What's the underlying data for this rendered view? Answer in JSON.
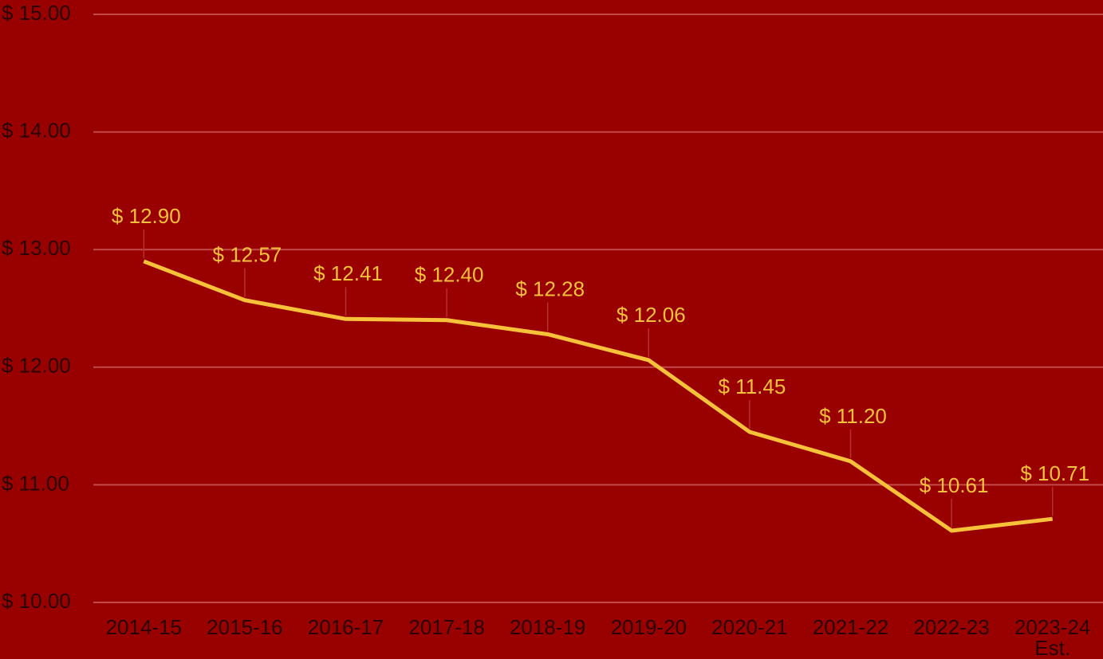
{
  "chart_data": {
    "type": "line",
    "categories": [
      "2014-15",
      "2015-16",
      "2016-17",
      "2017-18",
      "2018-19",
      "2019-20",
      "2020-21",
      "2021-22",
      "2022-23",
      "2023-24 Est."
    ],
    "series": [
      {
        "color": "#f7c23a",
        "values": [
          12.9,
          12.57,
          12.41,
          12.4,
          12.28,
          12.06,
          11.45,
          11.2,
          10.61,
          10.71
        ],
        "value_labels": [
          "$ 12.90",
          "$ 12.57",
          "$ 12.41",
          "$ 12.40",
          "$ 12.28",
          "$ 12.06",
          "$ 11.45",
          "$ 11.20",
          "$ 10.61",
          "$ 10.71"
        ]
      }
    ],
    "ylim": [
      10,
      15
    ],
    "yticks": [
      {
        "value": 10,
        "label": "$ 10.00"
      },
      {
        "value": 11,
        "label": "$ 11.00"
      },
      {
        "value": 12,
        "label": "$ 12.00"
      },
      {
        "value": 13,
        "label": "$ 13.00"
      },
      {
        "value": 14,
        "label": "$ 14.00"
      },
      {
        "value": 15,
        "label": "$ 15.00"
      }
    ],
    "grid": true,
    "background": "#990000"
  }
}
